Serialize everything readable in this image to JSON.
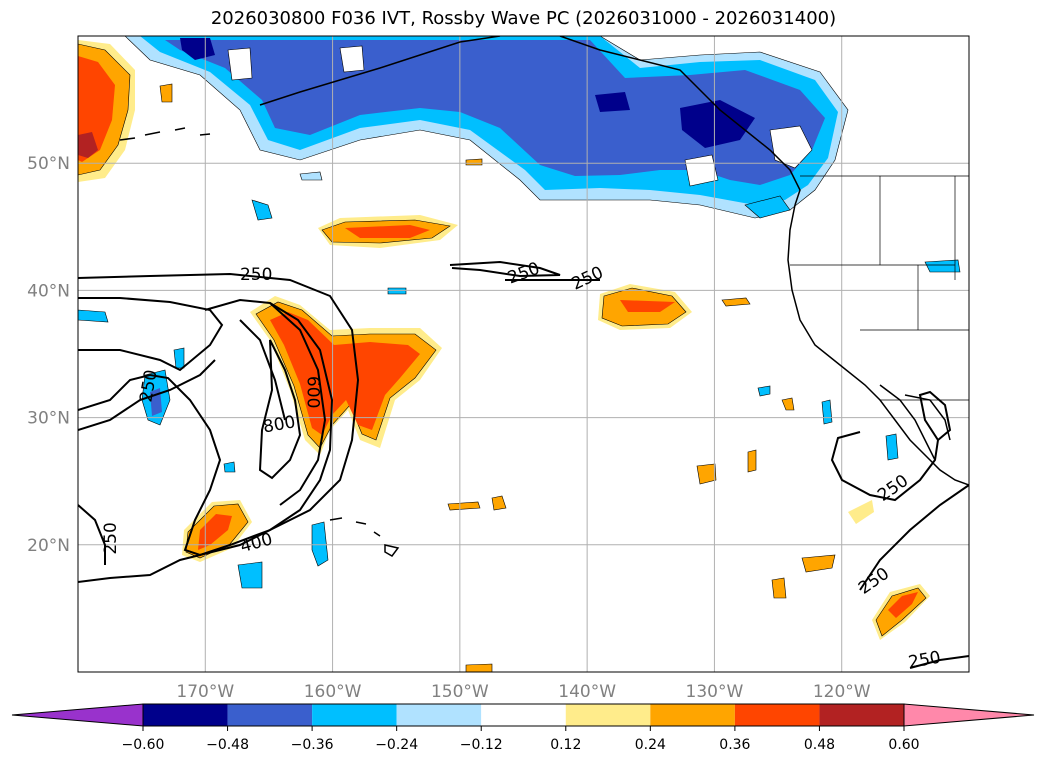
{
  "title": "2026030800 F036 IVT, Rossby Wave PC (2026031000 - 2026031400)",
  "map": {
    "lon_range": [
      -180,
      -110
    ],
    "lat_range": [
      10,
      60
    ],
    "lon_ticks": [
      {
        "value": -170,
        "label": "170°W"
      },
      {
        "value": -160,
        "label": "160°W"
      },
      {
        "value": -150,
        "label": "150°W"
      },
      {
        "value": -140,
        "label": "140°W"
      },
      {
        "value": -130,
        "label": "130°W"
      },
      {
        "value": -120,
        "label": "120°W"
      }
    ],
    "lat_ticks": [
      {
        "value": 50,
        "label": "50°N"
      },
      {
        "value": 40,
        "label": "40°N"
      },
      {
        "value": 30,
        "label": "30°N"
      },
      {
        "value": 20,
        "label": "20°N"
      }
    ],
    "ocean_color": "#ffffff",
    "grid": true,
    "contour_labels": [
      {
        "text": "250",
        "lon": -166,
        "lat": 41.3,
        "rot": 0
      },
      {
        "text": "250",
        "lon": -145,
        "lat": 41.4,
        "rot": -20
      },
      {
        "text": "250",
        "lon": -140,
        "lat": 41.0,
        "rot": -25
      },
      {
        "text": "250",
        "lon": -174.5,
        "lat": 32.5,
        "rot": -80
      },
      {
        "text": "250",
        "lon": -177.5,
        "lat": 20.5,
        "rot": -90
      },
      {
        "text": "800",
        "lon": -164.2,
        "lat": 29.5,
        "rot": -10
      },
      {
        "text": "600",
        "lon": -161.5,
        "lat": 32.0,
        "rot": 90
      },
      {
        "text": "400",
        "lon": -166,
        "lat": 20.2,
        "rot": -15
      },
      {
        "text": "250",
        "lon": -116,
        "lat": 24.5,
        "rot": -35
      },
      {
        "text": "250",
        "lon": -117.5,
        "lat": 17.2,
        "rot": -35
      },
      {
        "text": "250",
        "lon": -113.5,
        "lat": 11.0,
        "rot": -10
      }
    ]
  },
  "colorbar": {
    "colors": [
      "#9932cc",
      "#00008b",
      "#3a5fcd",
      "#00bfff",
      "#b0e2ff",
      "#ffffff",
      "#ffec8b",
      "#ffa500",
      "#ff4500",
      "#b22222",
      "#ff88aa"
    ],
    "labels": [
      "−0.60",
      "−0.48",
      "−0.36",
      "−0.24",
      "−0.12",
      "0.12",
      "0.24",
      "0.36",
      "0.48",
      "0.60"
    ]
  }
}
